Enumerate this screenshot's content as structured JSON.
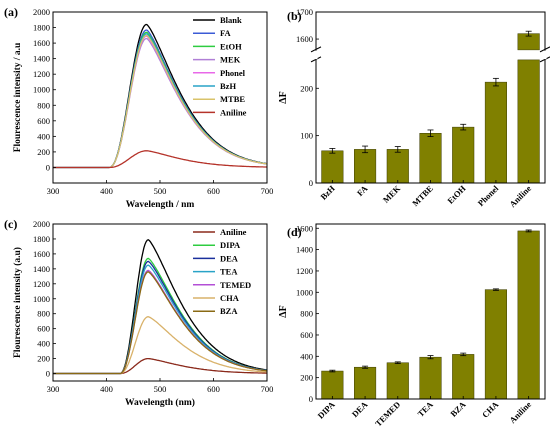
{
  "panels": [
    {
      "label": "(a)"
    },
    {
      "label": "(b)"
    },
    {
      "label": "(c)"
    },
    {
      "label": "(d)"
    }
  ],
  "chart_data": [
    {
      "type": "line",
      "panel": "(a)",
      "xlabel": "Wavelength / nm",
      "ylabel": "Flourescence intensity / a.u",
      "xlim": [
        300,
        700
      ],
      "ylim": [
        -200,
        2000
      ],
      "xticks": [
        300,
        400,
        500,
        600,
        700
      ],
      "yticks": [
        0,
        200,
        400,
        600,
        800,
        1000,
        1200,
        1400,
        1600,
        1800,
        2000
      ],
      "legend_position": "top-right",
      "series": [
        {
          "name": "Blank",
          "color": "#000000",
          "peak": 1840
        },
        {
          "name": "FA",
          "color": "#3b5bd6",
          "peak": 1770
        },
        {
          "name": "EtOH",
          "color": "#2ecc40",
          "peak": 1740
        },
        {
          "name": "MEK",
          "color": "#b07fd6",
          "peak": 1660
        },
        {
          "name": "Phonel",
          "color": "#e868e8",
          "peak": 1690
        },
        {
          "name": "BzH",
          "color": "#29a3c7",
          "peak": 1720
        },
        {
          "name": "MTBE",
          "color": "#d9c36a",
          "peak": 1700
        },
        {
          "name": "Aniline",
          "color": "#b5332a",
          "peak": 215
        }
      ],
      "curve": {
        "onset": 405,
        "peak_x": 475,
        "decay_end": 700
      }
    },
    {
      "type": "bar",
      "panel": "(b)",
      "ylabel": "ΔF",
      "categories": [
        "BzH",
        "FA",
        "MEK",
        "MTBE",
        "EtOH",
        "Phonel",
        "Aniline"
      ],
      "values": [
        68,
        71,
        71,
        105,
        118,
        213,
        1620
      ],
      "errors": [
        5,
        7,
        6,
        7,
        6,
        8,
        9
      ],
      "ylim_lower": [
        0,
        260
      ],
      "ylim_upper": [
        1560,
        1700
      ],
      "yticks": [
        0,
        100,
        200,
        1600,
        1700
      ],
      "axis_break": true,
      "bar_color": "#808000"
    },
    {
      "type": "line",
      "panel": "(c)",
      "xlabel": "Wavelength (nm)",
      "ylabel": "Flourescence intensity (a.u)",
      "xlim": [
        300,
        700
      ],
      "ylim": [
        -100,
        2000
      ],
      "xticks": [
        300,
        400,
        500,
        600,
        700
      ],
      "yticks": [
        0,
        200,
        400,
        600,
        800,
        1000,
        1200,
        1400,
        1600,
        1800,
        2000
      ],
      "legend_position": "top-right",
      "series": [
        {
          "name": "",
          "color": "#000000",
          "peak": 1790
        },
        {
          "name": "Aniline",
          "color": "#8b2a1c",
          "peak": 200
        },
        {
          "name": "DIPA",
          "color": "#2ecc40",
          "peak": 1540
        },
        {
          "name": "DEA",
          "color": "#1a2f9c",
          "peak": 1500
        },
        {
          "name": "TEA",
          "color": "#29a3c7",
          "peak": 1450
        },
        {
          "name": "TEMED",
          "color": "#b34fd6",
          "peak": 1380
        },
        {
          "name": "CHA",
          "color": "#d9b26a",
          "peak": 760
        },
        {
          "name": "BZA",
          "color": "#8a6a14",
          "peak": 1360
        }
      ],
      "curve": {
        "onset": 425,
        "peak_x": 478,
        "decay_end": 700
      }
    },
    {
      "type": "bar",
      "panel": "(d)",
      "ylabel": "ΔF",
      "categories": [
        "DIPA",
        "DEA",
        "TEMED",
        "TEA",
        "BZA",
        "CHA",
        "Aniline"
      ],
      "values": [
        262,
        298,
        340,
        392,
        418,
        1025,
        1575
      ],
      "errors": [
        8,
        10,
        8,
        15,
        12,
        7,
        9
      ],
      "ylim": [
        0,
        1640
      ],
      "yticks": [
        0,
        200,
        400,
        600,
        800,
        1000,
        1200,
        1400,
        1600
      ],
      "bar_color": "#808000"
    }
  ]
}
